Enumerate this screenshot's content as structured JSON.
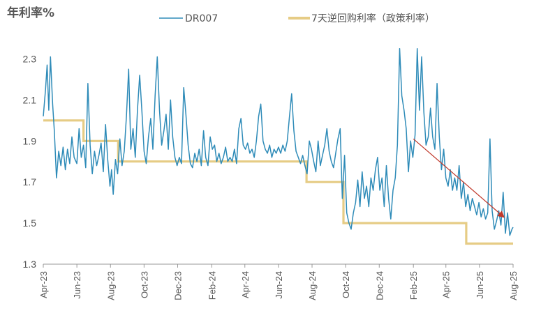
{
  "chart_data": {
    "type": "line",
    "ylabel": "年利率%",
    "ylim": [
      1.3,
      2.4
    ],
    "y_ticks": [
      "2.3",
      "2.1",
      "1.9",
      "1.7",
      "1.5",
      "1.3"
    ],
    "y_tick_values": [
      2.3,
      2.1,
      1.9,
      1.7,
      1.5,
      1.3
    ],
    "x_range": [
      "2023-04-01",
      "2025-08-01"
    ],
    "x_ticks": [
      "Apr-23",
      "Jun-23",
      "Aug-23",
      "Oct-23",
      "Dec-23",
      "Feb-24",
      "Apr-24",
      "Jun-24",
      "Aug-24",
      "Oct-24",
      "Dec-24",
      "Feb-25",
      "Apr-25",
      "Jun-25",
      "Aug-25"
    ],
    "x_tick_dates": [
      "2023-04-01",
      "2023-06-01",
      "2023-08-01",
      "2023-10-01",
      "2023-12-01",
      "2024-02-01",
      "2024-04-01",
      "2024-06-01",
      "2024-08-01",
      "2024-10-01",
      "2024-12-01",
      "2025-02-01",
      "2025-04-01",
      "2025-06-01",
      "2025-08-01"
    ],
    "grid": false,
    "legend_position": "top",
    "series": [
      {
        "name": "DR007",
        "color": "#2E8BB8",
        "points": [
          [
            "2023-04-01",
            2.02
          ],
          [
            "2023-04-05",
            2.15
          ],
          [
            "2023-04-08",
            2.27
          ],
          [
            "2023-04-11",
            2.05
          ],
          [
            "2023-04-14",
            2.31
          ],
          [
            "2023-04-18",
            2.08
          ],
          [
            "2023-04-21",
            1.95
          ],
          [
            "2023-04-25",
            1.72
          ],
          [
            "2023-04-29",
            1.85
          ],
          [
            "2023-05-03",
            1.78
          ],
          [
            "2023-05-07",
            1.87
          ],
          [
            "2023-05-11",
            1.76
          ],
          [
            "2023-05-15",
            1.86
          ],
          [
            "2023-05-19",
            1.79
          ],
          [
            "2023-05-23",
            1.92
          ],
          [
            "2023-05-27",
            1.82
          ],
          [
            "2023-06-01",
            1.79
          ],
          [
            "2023-06-05",
            1.96
          ],
          [
            "2023-06-09",
            1.82
          ],
          [
            "2023-06-13",
            1.88
          ],
          [
            "2023-06-17",
            1.77
          ],
          [
            "2023-06-21",
            2.18
          ],
          [
            "2023-06-25",
            1.88
          ],
          [
            "2023-06-29",
            1.74
          ],
          [
            "2023-07-03",
            1.85
          ],
          [
            "2023-07-07",
            1.78
          ],
          [
            "2023-07-11",
            1.83
          ],
          [
            "2023-07-15",
            1.89
          ],
          [
            "2023-07-19",
            1.75
          ],
          [
            "2023-07-23",
            1.98
          ],
          [
            "2023-07-27",
            1.81
          ],
          [
            "2023-07-31",
            1.68
          ],
          [
            "2023-08-03",
            1.76
          ],
          [
            "2023-08-06",
            1.64
          ],
          [
            "2023-08-10",
            1.81
          ],
          [
            "2023-08-14",
            1.74
          ],
          [
            "2023-08-18",
            1.91
          ],
          [
            "2023-08-22",
            1.78
          ],
          [
            "2023-08-26",
            1.85
          ],
          [
            "2023-08-30",
            2.02
          ],
          [
            "2023-09-03",
            2.25
          ],
          [
            "2023-09-07",
            1.86
          ],
          [
            "2023-09-11",
            1.96
          ],
          [
            "2023-09-15",
            1.82
          ],
          [
            "2023-09-19",
            2.05
          ],
          [
            "2023-09-23",
            2.22
          ],
          [
            "2023-09-27",
            2.05
          ],
          [
            "2023-10-01",
            1.85
          ],
          [
            "2023-10-05",
            1.79
          ],
          [
            "2023-10-09",
            1.92
          ],
          [
            "2023-10-13",
            2.01
          ],
          [
            "2023-10-17",
            1.86
          ],
          [
            "2023-10-21",
            2.12
          ],
          [
            "2023-10-25",
            2.31
          ],
          [
            "2023-10-29",
            2.05
          ],
          [
            "2023-11-02",
            1.88
          ],
          [
            "2023-11-06",
            1.95
          ],
          [
            "2023-11-10",
            2.03
          ],
          [
            "2023-11-14",
            1.86
          ],
          [
            "2023-11-18",
            2.1
          ],
          [
            "2023-11-22",
            1.92
          ],
          [
            "2023-11-26",
            1.82
          ],
          [
            "2023-11-30",
            1.78
          ],
          [
            "2023-12-04",
            1.82
          ],
          [
            "2023-12-08",
            1.79
          ],
          [
            "2023-12-12",
            2.16
          ],
          [
            "2023-12-16",
            2.03
          ],
          [
            "2023-12-20",
            1.88
          ],
          [
            "2023-12-24",
            1.79
          ],
          [
            "2023-12-28",
            1.77
          ],
          [
            "2024-01-01",
            1.84
          ],
          [
            "2024-01-05",
            1.8
          ],
          [
            "2024-01-09",
            1.86
          ],
          [
            "2024-01-13",
            1.78
          ],
          [
            "2024-01-17",
            1.95
          ],
          [
            "2024-01-21",
            1.82
          ],
          [
            "2024-01-25",
            1.78
          ],
          [
            "2024-01-29",
            1.92
          ],
          [
            "2024-02-02",
            1.86
          ],
          [
            "2024-02-06",
            1.88
          ],
          [
            "2024-02-10",
            1.8
          ],
          [
            "2024-02-14",
            1.84
          ],
          [
            "2024-02-18",
            1.79
          ],
          [
            "2024-02-22",
            1.82
          ],
          [
            "2024-02-26",
            1.87
          ],
          [
            "2024-03-01",
            1.8
          ],
          [
            "2024-03-05",
            1.82
          ],
          [
            "2024-03-09",
            1.8
          ],
          [
            "2024-03-13",
            1.86
          ],
          [
            "2024-03-17",
            1.79
          ],
          [
            "2024-03-21",
            1.96
          ],
          [
            "2024-03-25",
            2.01
          ],
          [
            "2024-03-29",
            1.88
          ],
          [
            "2024-04-02",
            1.86
          ],
          [
            "2024-04-06",
            1.89
          ],
          [
            "2024-04-10",
            1.84
          ],
          [
            "2024-04-14",
            1.86
          ],
          [
            "2024-04-18",
            1.82
          ],
          [
            "2024-04-22",
            1.9
          ],
          [
            "2024-04-26",
            2.02
          ],
          [
            "2024-04-30",
            2.08
          ],
          [
            "2024-05-04",
            1.9
          ],
          [
            "2024-05-08",
            1.86
          ],
          [
            "2024-05-12",
            1.84
          ],
          [
            "2024-05-16",
            1.88
          ],
          [
            "2024-05-20",
            1.82
          ],
          [
            "2024-05-24",
            1.86
          ],
          [
            "2024-05-28",
            1.84
          ],
          [
            "2024-06-01",
            1.87
          ],
          [
            "2024-06-05",
            1.84
          ],
          [
            "2024-06-09",
            1.88
          ],
          [
            "2024-06-13",
            1.85
          ],
          [
            "2024-06-17",
            1.9
          ],
          [
            "2024-06-21",
            2.02
          ],
          [
            "2024-06-25",
            2.13
          ],
          [
            "2024-06-29",
            1.95
          ],
          [
            "2024-07-03",
            1.85
          ],
          [
            "2024-07-07",
            1.82
          ],
          [
            "2024-07-11",
            1.79
          ],
          [
            "2024-07-15",
            1.83
          ],
          [
            "2024-07-19",
            1.78
          ],
          [
            "2024-07-23",
            1.74
          ],
          [
            "2024-07-27",
            1.9
          ],
          [
            "2024-07-31",
            1.86
          ],
          [
            "2024-08-04",
            1.8
          ],
          [
            "2024-08-08",
            1.75
          ],
          [
            "2024-08-12",
            1.9
          ],
          [
            "2024-08-16",
            1.78
          ],
          [
            "2024-08-20",
            1.83
          ],
          [
            "2024-08-24",
            1.88
          ],
          [
            "2024-08-28",
            1.96
          ],
          [
            "2024-09-01",
            1.85
          ],
          [
            "2024-09-05",
            1.8
          ],
          [
            "2024-09-09",
            1.77
          ],
          [
            "2024-09-13",
            1.84
          ],
          [
            "2024-09-17",
            1.91
          ],
          [
            "2024-09-21",
            1.96
          ],
          [
            "2024-09-25",
            1.62
          ],
          [
            "2024-09-29",
            1.83
          ],
          [
            "2024-10-03",
            1.55
          ],
          [
            "2024-10-07",
            1.5
          ],
          [
            "2024-10-11",
            1.47
          ],
          [
            "2024-10-15",
            1.55
          ],
          [
            "2024-10-19",
            1.6
          ],
          [
            "2024-10-23",
            1.71
          ],
          [
            "2024-10-27",
            1.58
          ],
          [
            "2024-10-31",
            1.75
          ],
          [
            "2024-11-04",
            1.62
          ],
          [
            "2024-11-08",
            1.68
          ],
          [
            "2024-11-12",
            1.58
          ],
          [
            "2024-11-16",
            1.72
          ],
          [
            "2024-11-20",
            1.66
          ],
          [
            "2024-11-24",
            1.76
          ],
          [
            "2024-11-28",
            1.82
          ],
          [
            "2024-12-02",
            1.66
          ],
          [
            "2024-12-06",
            1.72
          ],
          [
            "2024-12-10",
            1.58
          ],
          [
            "2024-12-14",
            1.78
          ],
          [
            "2024-12-18",
            1.62
          ],
          [
            "2024-12-22",
            1.52
          ],
          [
            "2024-12-26",
            1.66
          ],
          [
            "2024-12-30",
            1.72
          ],
          [
            "2025-01-03",
            1.88
          ],
          [
            "2025-01-07",
            2.35
          ],
          [
            "2025-01-11",
            2.12
          ],
          [
            "2025-01-15",
            2.05
          ],
          [
            "2025-01-19",
            1.96
          ],
          [
            "2025-01-23",
            1.75
          ],
          [
            "2025-01-27",
            1.9
          ],
          [
            "2025-01-31",
            1.82
          ],
          [
            "2025-02-04",
            1.93
          ],
          [
            "2025-02-08",
            2.35
          ],
          [
            "2025-02-12",
            2.05
          ],
          [
            "2025-02-16",
            2.31
          ],
          [
            "2025-02-20",
            2.04
          ],
          [
            "2025-02-24",
            1.88
          ],
          [
            "2025-02-28",
            1.92
          ],
          [
            "2025-03-04",
            2.06
          ],
          [
            "2025-03-08",
            1.92
          ],
          [
            "2025-03-12",
            1.86
          ],
          [
            "2025-03-16",
            2.18
          ],
          [
            "2025-03-20",
            1.92
          ],
          [
            "2025-03-24",
            1.76
          ],
          [
            "2025-03-28",
            1.86
          ],
          [
            "2025-04-01",
            1.72
          ],
          [
            "2025-04-05",
            1.68
          ],
          [
            "2025-04-09",
            1.76
          ],
          [
            "2025-04-13",
            1.66
          ],
          [
            "2025-04-17",
            1.72
          ],
          [
            "2025-04-21",
            1.66
          ],
          [
            "2025-04-25",
            1.78
          ],
          [
            "2025-04-29",
            1.62
          ],
          [
            "2025-05-03",
            1.7
          ],
          [
            "2025-05-07",
            1.58
          ],
          [
            "2025-05-11",
            1.64
          ],
          [
            "2025-05-15",
            1.56
          ],
          [
            "2025-05-19",
            1.62
          ],
          [
            "2025-05-23",
            1.58
          ],
          [
            "2025-05-27",
            1.54
          ],
          [
            "2025-05-31",
            1.6
          ],
          [
            "2025-06-04",
            1.53
          ],
          [
            "2025-06-08",
            1.57
          ],
          [
            "2025-06-12",
            1.52
          ],
          [
            "2025-06-16",
            1.55
          ],
          [
            "2025-06-20",
            1.91
          ],
          [
            "2025-06-24",
            1.56
          ],
          [
            "2025-06-28",
            1.47
          ],
          [
            "2025-07-02",
            1.51
          ],
          [
            "2025-07-06",
            1.56
          ],
          [
            "2025-07-10",
            1.49
          ],
          [
            "2025-07-14",
            1.65
          ],
          [
            "2025-07-18",
            1.45
          ],
          [
            "2025-07-22",
            1.55
          ],
          [
            "2025-07-26",
            1.44
          ],
          [
            "2025-07-30",
            1.47
          ],
          [
            "2025-08-01",
            1.48
          ]
        ]
      },
      {
        "name": "7天逆回购利率（政策利率）",
        "color": "#E6CC85",
        "steps": [
          [
            "2023-04-01",
            2.0
          ],
          [
            "2023-06-13",
            1.9
          ],
          [
            "2023-08-15",
            1.8
          ],
          [
            "2024-07-22",
            1.7
          ],
          [
            "2024-09-27",
            1.5
          ],
          [
            "2025-05-08",
            1.4
          ],
          [
            "2025-08-01",
            1.4
          ]
        ]
      }
    ],
    "annotations": [
      {
        "type": "arrow",
        "color": "#C0392B",
        "from": [
          "2025-02-01",
          1.91
        ],
        "to": [
          "2025-07-15",
          1.53
        ]
      }
    ]
  }
}
